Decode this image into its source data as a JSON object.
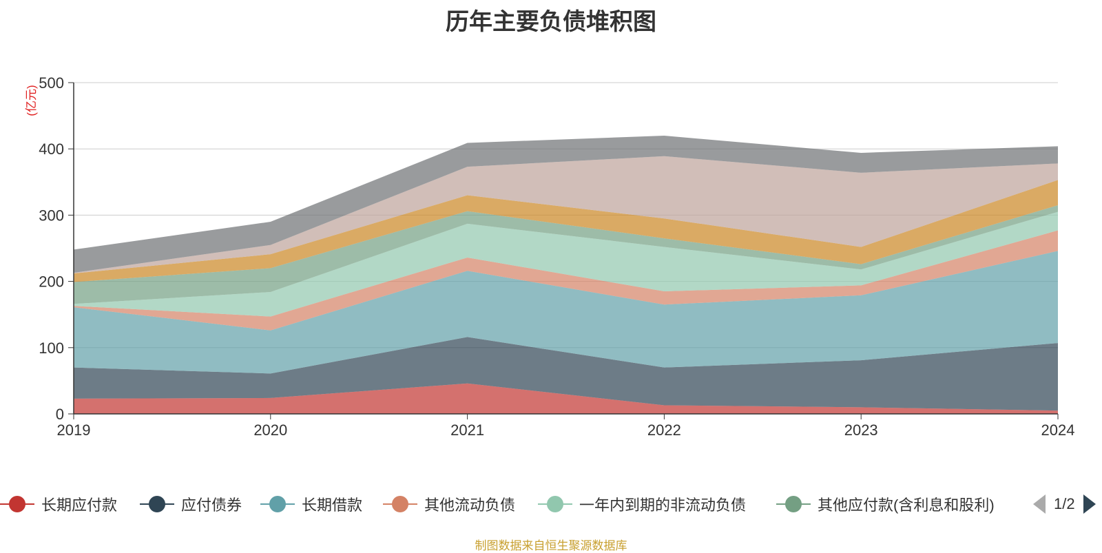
{
  "chart_data": {
    "type": "area",
    "stacked": true,
    "title": "历年主要负债堆积图",
    "unit_label": "(亿元)",
    "categories": [
      "2019",
      "2020",
      "2021",
      "2022",
      "2023",
      "2024"
    ],
    "ylim": [
      0,
      500
    ],
    "yticks": [
      0,
      100,
      200,
      300,
      400,
      500
    ],
    "grid": true,
    "legend_position": "bottom",
    "series": [
      {
        "name": "长期应付款",
        "color": "#c23531",
        "values": [
          23,
          24,
          46,
          13,
          10,
          5
        ]
      },
      {
        "name": "应付债券",
        "color": "#2f4554",
        "values": [
          47,
          37,
          70,
          57,
          71,
          102
        ]
      },
      {
        "name": "长期借款",
        "color": "#61a0a8",
        "values": [
          91,
          65,
          100,
          95,
          98,
          139
        ]
      },
      {
        "name": "其他流动负债",
        "color": "#d48265",
        "values": [
          2,
          21,
          20,
          20,
          15,
          31
        ]
      },
      {
        "name": "一年内到期的非流动负债",
        "color": "#91c7ae",
        "values": [
          3,
          37,
          51,
          67,
          24,
          28
        ]
      },
      {
        "name": "其他应付款(含利息和股利)",
        "color": "#749f83",
        "values": [
          33,
          36,
          19,
          13,
          8,
          10
        ]
      },
      {
        "name": "",
        "color": "#ca8622",
        "values": [
          13,
          21,
          24,
          30,
          26,
          38
        ]
      },
      {
        "name": "",
        "color": "#bda29a",
        "values": [
          1,
          14,
          43,
          94,
          112,
          25
        ]
      },
      {
        "name": "",
        "color": "#6e7074",
        "values": [
          35,
          35,
          36,
          31,
          30,
          26
        ]
      }
    ]
  },
  "legend": {
    "page_indicator": "1/2"
  },
  "footer": {
    "source": "制图数据来自恒生聚源数据库"
  }
}
